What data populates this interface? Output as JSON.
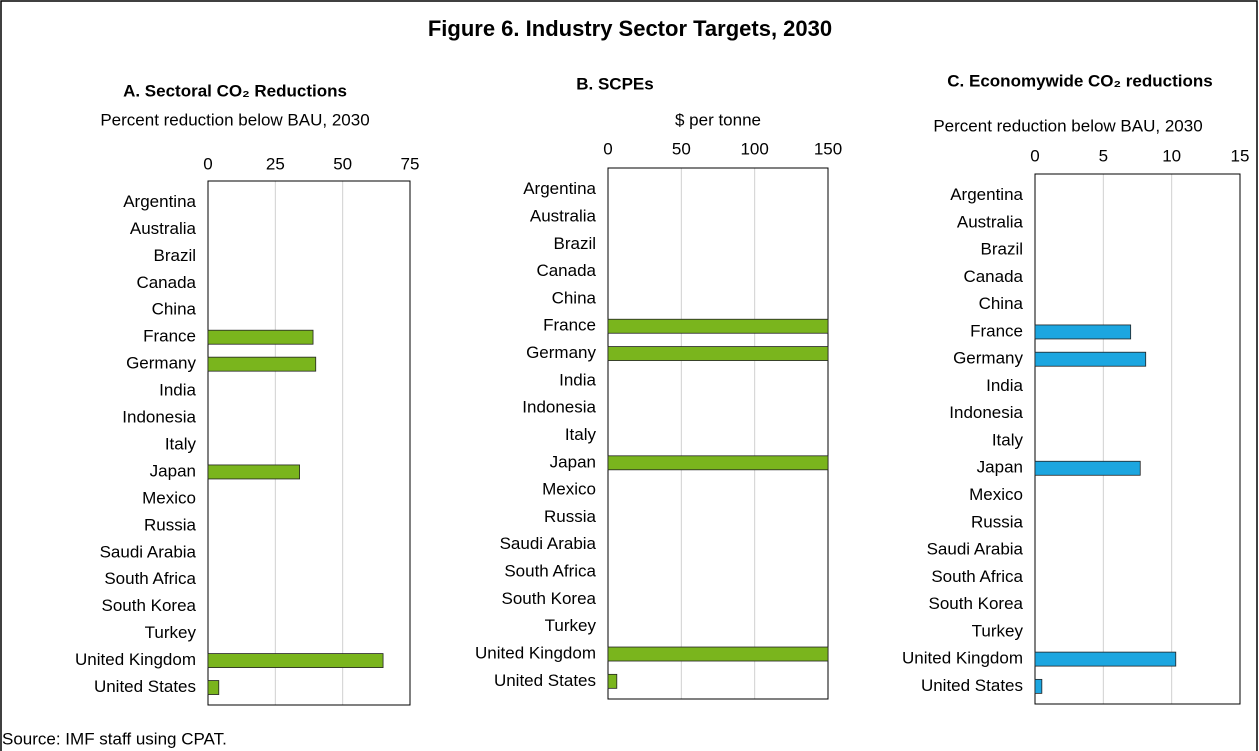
{
  "title": "Figure 6. Industry Sector Targets, 2030",
  "source": "Source: IMF staff using CPAT.",
  "chart_data": [
    {
      "type": "bar",
      "orientation": "horizontal",
      "title": "A. Sectoral CO₂ Reductions",
      "subtitle": "Percent reduction below BAU, 2030",
      "categories": [
        "Argentina",
        "Australia",
        "Brazil",
        "Canada",
        "China",
        "France",
        "Germany",
        "India",
        "Indonesia",
        "Italy",
        "Japan",
        "Mexico",
        "Russia",
        "Saudi Arabia",
        "South Africa",
        "South Korea",
        "Turkey",
        "United Kingdom",
        "United States"
      ],
      "values": [
        0,
        0,
        0,
        0,
        0,
        39,
        40,
        0,
        0,
        0,
        34,
        0,
        0,
        0,
        0,
        0,
        0,
        65,
        4
      ],
      "color": "#7ab51d",
      "xlim": [
        0,
        75
      ],
      "xticks": [
        0,
        25,
        50,
        75
      ],
      "grid": true
    },
    {
      "type": "bar",
      "orientation": "horizontal",
      "title": "B. SCPEs",
      "subtitle": "$ per tonne",
      "categories": [
        "Argentina",
        "Australia",
        "Brazil",
        "Canada",
        "China",
        "France",
        "Germany",
        "India",
        "Indonesia",
        "Italy",
        "Japan",
        "Mexico",
        "Russia",
        "Saudi Arabia",
        "South Africa",
        "South Korea",
        "Turkey",
        "United Kingdom",
        "United States"
      ],
      "values": [
        0,
        0,
        0,
        0,
        0,
        150,
        150,
        0,
        0,
        0,
        150,
        0,
        0,
        0,
        0,
        0,
        0,
        150,
        6
      ],
      "color": "#7ab51d",
      "xlim": [
        0,
        150
      ],
      "xticks": [
        0,
        50,
        100,
        150
      ],
      "grid": true
    },
    {
      "type": "bar",
      "orientation": "horizontal",
      "title": "C. Economywide CO₂ reductions",
      "subtitle": "Percent reduction below BAU, 2030",
      "categories": [
        "Argentina",
        "Australia",
        "Brazil",
        "Canada",
        "China",
        "France",
        "Germany",
        "India",
        "Indonesia",
        "Italy",
        "Japan",
        "Mexico",
        "Russia",
        "Saudi Arabia",
        "South Africa",
        "South Korea",
        "Turkey",
        "United Kingdom",
        "United States"
      ],
      "values": [
        0,
        0,
        0,
        0,
        0,
        7,
        8.1,
        0,
        0,
        0,
        7.7,
        0,
        0,
        0,
        0,
        0,
        0,
        10.3,
        0.5
      ],
      "color": "#1ca6e0",
      "xlim": [
        0,
        15
      ],
      "xticks": [
        0,
        5,
        10,
        15
      ],
      "grid": true
    }
  ]
}
